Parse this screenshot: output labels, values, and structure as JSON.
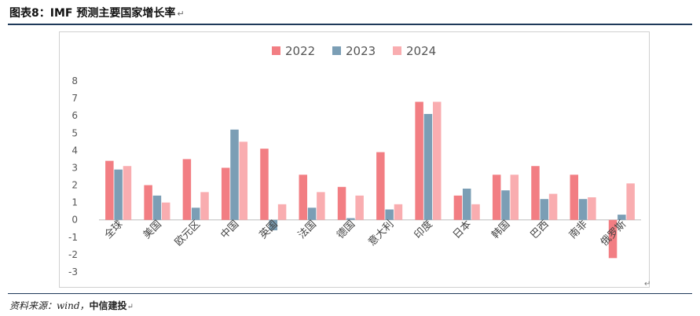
{
  "header": {
    "title": "图表8：",
    "title_rest": "IMF 预测主要国家增长率",
    "title_mark": "↵"
  },
  "footer": {
    "source_label": "资料来源：wind，",
    "source_org": "中信建投",
    "source_mark": "↵"
  },
  "chart_mark": "↵",
  "chart_data": {
    "type": "bar",
    "categories": [
      "全球",
      "美国",
      "欧元区",
      "中国",
      "英国",
      "法国",
      "德国",
      "意大利",
      "印度",
      "日本",
      "韩国",
      "巴西",
      "南非",
      "俄罗斯"
    ],
    "series": [
      {
        "name": "2022",
        "color": "#f27e83",
        "values": [
          3.4,
          2.0,
          3.5,
          3.0,
          4.1,
          2.6,
          1.9,
          3.9,
          6.8,
          1.4,
          2.6,
          3.1,
          2.6,
          -2.2
        ]
      },
      {
        "name": "2023",
        "color": "#7b9eb5",
        "values": [
          2.9,
          1.4,
          0.7,
          5.2,
          -0.6,
          0.7,
          0.1,
          0.6,
          6.1,
          1.8,
          1.7,
          1.2,
          1.2,
          0.3
        ]
      },
      {
        "name": "2024",
        "color": "#f9adb0",
        "values": [
          3.1,
          1.0,
          1.6,
          4.5,
          0.9,
          1.6,
          1.4,
          0.9,
          6.8,
          0.9,
          2.6,
          1.5,
          1.3,
          2.1
        ]
      }
    ],
    "ylim": [
      -3,
      8
    ],
    "yticks": [
      -3,
      -2,
      -1,
      0,
      1,
      2,
      3,
      4,
      5,
      6,
      7,
      8
    ],
    "legend_position": "top-center",
    "grid": false
  }
}
